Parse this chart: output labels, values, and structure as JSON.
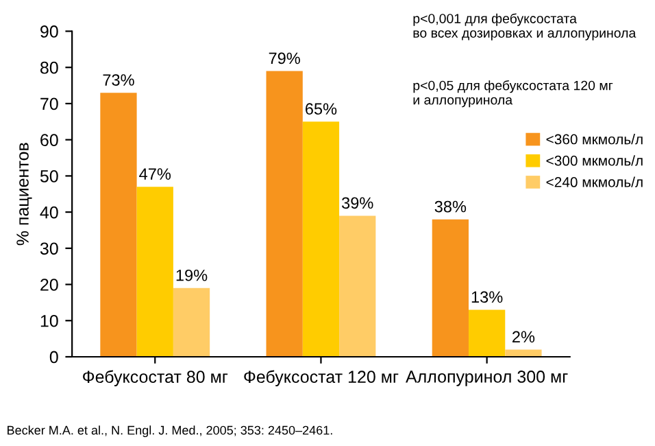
{
  "chart_data": {
    "type": "bar",
    "ylabel": "% пациентов",
    "categories": [
      "Фебуксостат 80 мг",
      "Фебуксостат 120 мг",
      "Аллопуринол 300 мг"
    ],
    "series": [
      {
        "name": "<360 мкмоль/л",
        "color": "#f7941d",
        "values": [
          73,
          79,
          38
        ],
        "value_labels": [
          "73%",
          "79%",
          "38%"
        ]
      },
      {
        "name": "<300 мкмоль/л",
        "color": "#ffcc00",
        "values": [
          47,
          65,
          13
        ],
        "value_labels": [
          "47%",
          "65%",
          "13%"
        ]
      },
      {
        "name": "<240 мкмоль/л",
        "color": "#ffcc66",
        "values": [
          19,
          39,
          2
        ],
        "value_labels": [
          "19%",
          "39%",
          "2%"
        ]
      }
    ],
    "ylim": [
      0,
      90
    ],
    "yticks": [
      0,
      10,
      20,
      30,
      40,
      50,
      60,
      70,
      80,
      90
    ],
    "legend": "right",
    "grid": false,
    "annotations": [
      "p<0,001 для фебуксостата\nво всех дозировках и аллопуринола",
      "p<0,05 для фебуксостата 120 мг\nи аллопуринола",
      "Becker M.A. et al., N. Engl. J. Med., 2005; 353: 2450–2461."
    ]
  }
}
